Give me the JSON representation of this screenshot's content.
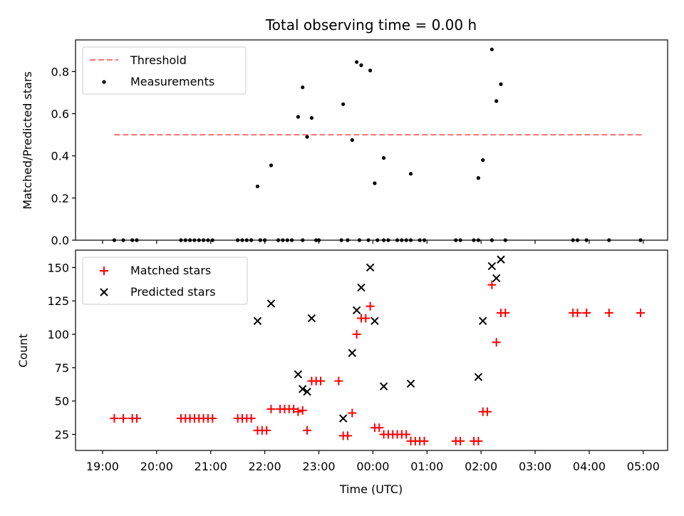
{
  "chart_data": {
    "title": "Total observing time = 0.00 h",
    "xlabel": "Time (UTC)",
    "x_ticks": [
      "19:00",
      "20:00",
      "21:00",
      "22:00",
      "23:00",
      "00:00",
      "01:00",
      "02:00",
      "03:00",
      "04:00",
      "05:00"
    ],
    "panels": [
      {
        "type": "scatter",
        "ylabel": "Matched/Predicted stars",
        "ylim": [
          0,
          0.95
        ],
        "y_ticks": [
          "0.0",
          "0.2",
          "0.4",
          "0.6",
          "0.8"
        ],
        "legend": {
          "placement": "top-left",
          "entries": [
            "Threshold",
            "Measurements"
          ]
        },
        "threshold": {
          "name": "Threshold",
          "value": 0.5,
          "x_start": "19:13",
          "x_end": "05:00",
          "color": "#ff7070",
          "style": "dashed"
        },
        "series": [
          {
            "name": "Measurements",
            "color": "#000000",
            "marker": "dot",
            "points": [
              [
                "19:13",
                0
              ],
              [
                "19:23",
                0
              ],
              [
                "19:33",
                0
              ],
              [
                "19:38",
                0
              ],
              [
                "20:27",
                0
              ],
              [
                "20:32",
                0
              ],
              [
                "20:37",
                0
              ],
              [
                "20:42",
                0
              ],
              [
                "20:47",
                0
              ],
              [
                "20:52",
                0
              ],
              [
                "20:57",
                0
              ],
              [
                "21:02",
                0
              ],
              [
                "21:30",
                0
              ],
              [
                "21:35",
                0
              ],
              [
                "21:40",
                0
              ],
              [
                "21:45",
                0
              ],
              [
                "21:55",
                0
              ],
              [
                "22:00",
                0
              ],
              [
                "22:15",
                0
              ],
              [
                "22:20",
                0
              ],
              [
                "22:25",
                0
              ],
              [
                "22:30",
                0
              ],
              [
                "22:42",
                0
              ],
              [
                "22:57",
                0
              ],
              [
                "23:00",
                0
              ],
              [
                "23:25",
                0
              ],
              [
                "23:32",
                0
              ],
              [
                "23:45",
                0
              ],
              [
                "23:55",
                0
              ],
              [
                "00:05",
                0
              ],
              [
                "00:12",
                0
              ],
              [
                "00:17",
                0
              ],
              [
                "00:27",
                0
              ],
              [
                "00:32",
                0
              ],
              [
                "00:37",
                0
              ],
              [
                "00:42",
                0
              ],
              [
                "00:52",
                0
              ],
              [
                "00:57",
                0
              ],
              [
                "01:32",
                0
              ],
              [
                "01:37",
                0
              ],
              [
                "01:52",
                0
              ],
              [
                "01:57",
                0
              ],
              [
                "02:12",
                0
              ],
              [
                "02:27",
                0
              ],
              [
                "03:42",
                0
              ],
              [
                "03:47",
                0
              ],
              [
                "03:57",
                0
              ],
              [
                "04:22",
                0
              ],
              [
                "04:57",
                0
              ],
              [
                "21:52",
                0.255
              ],
              [
                "22:07",
                0.355
              ],
              [
                "22:37",
                0.585
              ],
              [
                "22:42",
                0.725
              ],
              [
                "22:47",
                0.49
              ],
              [
                "22:52",
                0.58
              ],
              [
                "23:27",
                0.645
              ],
              [
                "23:37",
                0.475
              ],
              [
                "23:42",
                0.845
              ],
              [
                "23:47",
                0.83
              ],
              [
                "23:57",
                0.805
              ],
              [
                "00:02",
                0.27
              ],
              [
                "00:12",
                0.39
              ],
              [
                "00:42",
                0.315
              ],
              [
                "01:57",
                0.295
              ],
              [
                "02:02",
                0.38
              ],
              [
                "02:12",
                0.905
              ],
              [
                "02:17",
                0.66
              ],
              [
                "02:22",
                0.74
              ]
            ]
          }
        ]
      },
      {
        "type": "scatter",
        "ylabel": "Count",
        "ylim": [
          13,
          163
        ],
        "y_ticks": [
          "25",
          "50",
          "75",
          "100",
          "125",
          "150"
        ],
        "legend": {
          "placement": "top-left",
          "entries": [
            "Matched stars",
            "Predicted stars"
          ]
        },
        "series": [
          {
            "name": "Matched stars",
            "color": "#ff0000",
            "marker": "plus",
            "points": [
              [
                "19:13",
                37
              ],
              [
                "19:23",
                37
              ],
              [
                "19:33",
                37
              ],
              [
                "19:38",
                37
              ],
              [
                "20:27",
                37
              ],
              [
                "20:32",
                37
              ],
              [
                "20:37",
                37
              ],
              [
                "20:42",
                37
              ],
              [
                "20:47",
                37
              ],
              [
                "20:52",
                37
              ],
              [
                "20:57",
                37
              ],
              [
                "21:02",
                37
              ],
              [
                "21:30",
                37
              ],
              [
                "21:35",
                37
              ],
              [
                "21:40",
                37
              ],
              [
                "21:45",
                37
              ],
              [
                "21:52",
                28
              ],
              [
                "21:57",
                28
              ],
              [
                "22:02",
                28
              ],
              [
                "22:07",
                44
              ],
              [
                "22:17",
                44
              ],
              [
                "22:22",
                44
              ],
              [
                "22:27",
                44
              ],
              [
                "22:32",
                44
              ],
              [
                "22:37",
                42
              ],
              [
                "22:42",
                43
              ],
              [
                "22:47",
                28
              ],
              [
                "22:52",
                65
              ],
              [
                "22:57",
                65
              ],
              [
                "23:02",
                65
              ],
              [
                "23:22",
                65
              ],
              [
                "23:27",
                24
              ],
              [
                "23:32",
                24
              ],
              [
                "23:37",
                41
              ],
              [
                "23:42",
                100
              ],
              [
                "23:47",
                112
              ],
              [
                "23:52",
                112
              ],
              [
                "23:57",
                121
              ],
              [
                "00:02",
                30
              ],
              [
                "00:07",
                30
              ],
              [
                "00:12",
                25
              ],
              [
                "00:17",
                25
              ],
              [
                "00:22",
                25
              ],
              [
                "00:27",
                25
              ],
              [
                "00:32",
                25
              ],
              [
                "00:37",
                25
              ],
              [
                "00:42",
                20
              ],
              [
                "00:47",
                20
              ],
              [
                "00:52",
                20
              ],
              [
                "00:57",
                20
              ],
              [
                "01:32",
                20
              ],
              [
                "01:37",
                20
              ],
              [
                "01:52",
                20
              ],
              [
                "01:57",
                20
              ],
              [
                "02:02",
                42
              ],
              [
                "02:07",
                42
              ],
              [
                "02:12",
                137
              ],
              [
                "02:17",
                94
              ],
              [
                "02:22",
                116
              ],
              [
                "02:27",
                116
              ],
              [
                "03:42",
                116
              ],
              [
                "03:47",
                116
              ],
              [
                "03:57",
                116
              ],
              [
                "04:22",
                116
              ],
              [
                "04:57",
                116
              ]
            ]
          },
          {
            "name": "Predicted stars",
            "color": "#000000",
            "marker": "x",
            "points": [
              [
                "21:52",
                110
              ],
              [
                "22:07",
                123
              ],
              [
                "22:37",
                70
              ],
              [
                "22:42",
                59
              ],
              [
                "22:47",
                57
              ],
              [
                "22:52",
                112
              ],
              [
                "23:27",
                37
              ],
              [
                "23:37",
                86
              ],
              [
                "23:42",
                118
              ],
              [
                "23:47",
                135
              ],
              [
                "23:57",
                150
              ],
              [
                "00:02",
                110
              ],
              [
                "00:12",
                61
              ],
              [
                "00:42",
                63
              ],
              [
                "01:57",
                68
              ],
              [
                "02:02",
                110
              ],
              [
                "02:12",
                151
              ],
              [
                "02:17",
                142
              ],
              [
                "02:22",
                156
              ]
            ]
          }
        ]
      }
    ]
  }
}
